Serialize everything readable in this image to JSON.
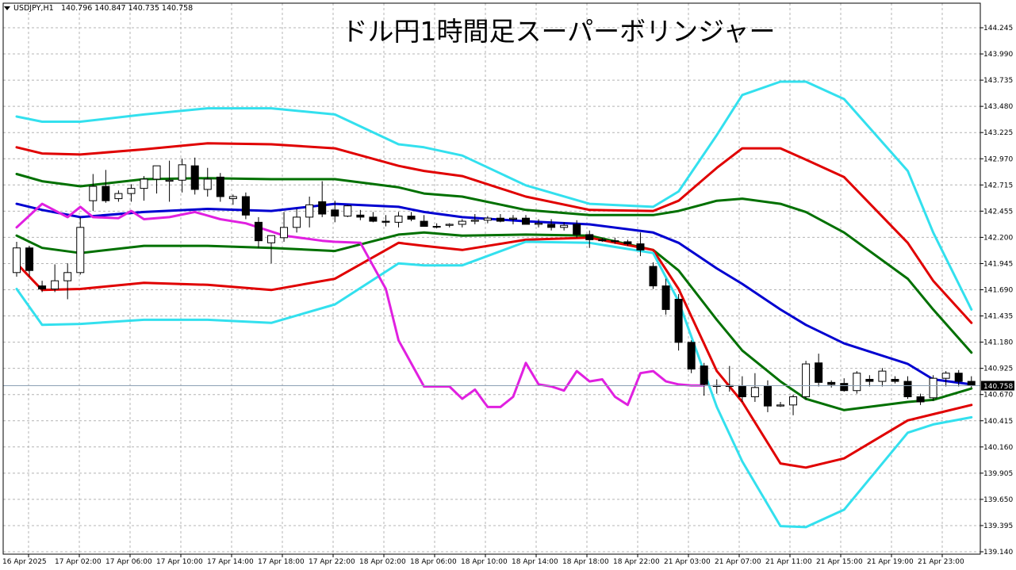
{
  "header": {
    "symbol": "USDJPY,H1",
    "ohlc": "140.796 140.847 140.735 140.758"
  },
  "title": "ドル円1時間足スーパーボリンジャー",
  "current_price_label": "140.758",
  "colors": {
    "background": "#ffffff",
    "grid": "#b4b4b4",
    "axis": "#000000",
    "bull_candle": "#ffffff",
    "bear_candle": "#000000",
    "sma": "#0000d0",
    "band1": "#007000",
    "band2": "#e00000",
    "band3": "#33e0ee",
    "lagging_span": "#e020e0",
    "price_line": "#8ca0b4",
    "price_label_bg": "#000000",
    "price_label_text": "#ffffff"
  },
  "chart_data": {
    "type": "candlestick",
    "title": "ドル円1時間足スーパーボリンジャー",
    "symbol": "USDJPY",
    "timeframe": "H1",
    "ylim": [
      139.14,
      144.46
    ],
    "yticks": [
      "144.245",
      "143.990",
      "143.735",
      "143.480",
      "143.225",
      "142.970",
      "142.715",
      "142.455",
      "142.200",
      "141.945",
      "141.690",
      "141.435",
      "141.180",
      "140.925",
      "140.670",
      "140.415",
      "140.160",
      "139.905",
      "139.650",
      "139.395",
      "139.140"
    ],
    "xticks": [
      "16 Apr 2025",
      "17 Apr 02:00",
      "17 Apr 06:00",
      "17 Apr 10:00",
      "17 Apr 14:00",
      "17 Apr 18:00",
      "17 Apr 22:00",
      "18 Apr 02:00",
      "18 Apr 06:00",
      "18 Apr 10:00",
      "18 Apr 14:00",
      "18 Apr 18:00",
      "18 Apr 22:00",
      "21 Apr 03:00",
      "21 Apr 07:00",
      "21 Apr 11:00",
      "21 Apr 15:00",
      "21 Apr 19:00",
      "21 Apr 23:00"
    ],
    "last_price": 140.758,
    "candles": [
      {
        "o": 141.86,
        "h": 142.16,
        "l": 141.82,
        "c": 142.1
      },
      {
        "o": 142.1,
        "h": 142.12,
        "l": 141.82,
        "c": 141.88
      },
      {
        "o": 141.73,
        "h": 141.78,
        "l": 141.67,
        "c": 141.7
      },
      {
        "o": 141.7,
        "h": 141.94,
        "l": 141.67,
        "c": 141.78
      },
      {
        "o": 141.78,
        "h": 141.95,
        "l": 141.6,
        "c": 141.86
      },
      {
        "o": 141.86,
        "h": 142.4,
        "l": 141.84,
        "c": 142.3
      },
      {
        "o": 142.56,
        "h": 142.82,
        "l": 142.46,
        "c": 142.7
      },
      {
        "o": 142.7,
        "h": 142.86,
        "l": 142.54,
        "c": 142.56
      },
      {
        "o": 142.58,
        "h": 142.66,
        "l": 142.55,
        "c": 142.63
      },
      {
        "o": 142.63,
        "h": 142.72,
        "l": 142.55,
        "c": 142.68
      },
      {
        "o": 142.68,
        "h": 142.8,
        "l": 142.56,
        "c": 142.77
      },
      {
        "o": 142.77,
        "h": 142.9,
        "l": 142.63,
        "c": 142.9
      },
      {
        "o": 142.75,
        "h": 142.95,
        "l": 142.55,
        "c": 142.76
      },
      {
        "o": 142.76,
        "h": 142.97,
        "l": 142.64,
        "c": 142.91
      },
      {
        "o": 142.9,
        "h": 142.98,
        "l": 142.62,
        "c": 142.67
      },
      {
        "o": 142.67,
        "h": 142.88,
        "l": 142.6,
        "c": 142.77
      },
      {
        "o": 142.79,
        "h": 142.83,
        "l": 142.55,
        "c": 142.6
      },
      {
        "o": 142.58,
        "h": 142.62,
        "l": 142.52,
        "c": 142.6
      },
      {
        "o": 142.6,
        "h": 142.64,
        "l": 142.38,
        "c": 142.42
      },
      {
        "o": 142.35,
        "h": 142.4,
        "l": 142.1,
        "c": 142.17
      },
      {
        "o": 142.15,
        "h": 142.2,
        "l": 141.95,
        "c": 142.22
      },
      {
        "o": 142.2,
        "h": 142.45,
        "l": 142.16,
        "c": 142.3
      },
      {
        "o": 142.3,
        "h": 142.48,
        "l": 142.25,
        "c": 142.4
      },
      {
        "o": 142.4,
        "h": 142.6,
        "l": 142.3,
        "c": 142.52
      },
      {
        "o": 142.55,
        "h": 142.75,
        "l": 142.4,
        "c": 142.43
      },
      {
        "o": 142.47,
        "h": 142.56,
        "l": 142.35,
        "c": 142.41
      },
      {
        "o": 142.41,
        "h": 142.52,
        "l": 142.4,
        "c": 142.51
      },
      {
        "o": 142.42,
        "h": 142.47,
        "l": 142.37,
        "c": 142.4
      },
      {
        "o": 142.4,
        "h": 142.45,
        "l": 142.35,
        "c": 142.36
      },
      {
        "o": 142.36,
        "h": 142.42,
        "l": 142.31,
        "c": 142.35
      },
      {
        "o": 142.35,
        "h": 142.45,
        "l": 142.3,
        "c": 142.41
      },
      {
        "o": 142.41,
        "h": 142.45,
        "l": 142.36,
        "c": 142.38
      },
      {
        "o": 142.36,
        "h": 142.42,
        "l": 142.31,
        "c": 142.31
      },
      {
        "o": 142.31,
        "h": 142.34,
        "l": 142.29,
        "c": 142.31
      },
      {
        "o": 142.32,
        "h": 142.34,
        "l": 142.3,
        "c": 142.33
      },
      {
        "o": 142.33,
        "h": 142.38,
        "l": 142.3,
        "c": 142.36
      },
      {
        "o": 142.36,
        "h": 142.43,
        "l": 142.33,
        "c": 142.37
      },
      {
        "o": 142.37,
        "h": 142.41,
        "l": 142.34,
        "c": 142.39
      },
      {
        "o": 142.39,
        "h": 142.43,
        "l": 142.35,
        "c": 142.36
      },
      {
        "o": 142.38,
        "h": 142.42,
        "l": 142.33,
        "c": 142.39
      },
      {
        "o": 142.39,
        "h": 142.42,
        "l": 142.33,
        "c": 142.33
      },
      {
        "o": 142.33,
        "h": 142.38,
        "l": 142.3,
        "c": 142.34
      },
      {
        "o": 142.33,
        "h": 142.38,
        "l": 142.27,
        "c": 142.3
      },
      {
        "o": 142.3,
        "h": 142.35,
        "l": 142.27,
        "c": 142.32
      },
      {
        "o": 142.33,
        "h": 142.37,
        "l": 142.2,
        "c": 142.23
      },
      {
        "o": 142.23,
        "h": 142.27,
        "l": 142.1,
        "c": 142.18
      },
      {
        "o": 142.18,
        "h": 142.2,
        "l": 142.16,
        "c": 142.17
      },
      {
        "o": 142.17,
        "h": 142.2,
        "l": 142.14,
        "c": 142.17
      },
      {
        "o": 142.16,
        "h": 142.18,
        "l": 142.12,
        "c": 142.14
      },
      {
        "o": 142.14,
        "h": 142.25,
        "l": 142.02,
        "c": 142.08
      },
      {
        "o": 141.92,
        "h": 141.96,
        "l": 141.7,
        "c": 141.73
      },
      {
        "o": 141.73,
        "h": 141.8,
        "l": 141.45,
        "c": 141.5
      },
      {
        "o": 141.6,
        "h": 141.65,
        "l": 141.1,
        "c": 141.18
      },
      {
        "o": 141.18,
        "h": 141.2,
        "l": 140.88,
        "c": 140.92
      },
      {
        "o": 140.95,
        "h": 140.98,
        "l": 140.66,
        "c": 140.77
      },
      {
        "o": 140.75,
        "h": 140.82,
        "l": 140.68,
        "c": 140.76
      },
      {
        "o": 140.76,
        "h": 140.95,
        "l": 140.7,
        "c": 140.75
      },
      {
        "o": 140.75,
        "h": 140.85,
        "l": 140.6,
        "c": 140.65
      },
      {
        "o": 140.65,
        "h": 140.88,
        "l": 140.6,
        "c": 140.74
      },
      {
        "o": 140.75,
        "h": 140.81,
        "l": 140.5,
        "c": 140.56
      },
      {
        "o": 140.56,
        "h": 140.6,
        "l": 140.55,
        "c": 140.57
      },
      {
        "o": 140.57,
        "h": 140.67,
        "l": 140.47,
        "c": 140.65
      },
      {
        "o": 140.65,
        "h": 141.0,
        "l": 140.62,
        "c": 140.97
      },
      {
        "o": 140.98,
        "h": 141.07,
        "l": 140.75,
        "c": 140.79
      },
      {
        "o": 140.79,
        "h": 140.81,
        "l": 140.74,
        "c": 140.77
      },
      {
        "o": 140.78,
        "h": 140.83,
        "l": 140.7,
        "c": 140.71
      },
      {
        "o": 140.71,
        "h": 140.9,
        "l": 140.68,
        "c": 140.88
      },
      {
        "o": 140.82,
        "h": 140.86,
        "l": 140.75,
        "c": 140.8
      },
      {
        "o": 140.8,
        "h": 140.93,
        "l": 140.75,
        "c": 140.9
      },
      {
        "o": 140.82,
        "h": 140.85,
        "l": 140.78,
        "c": 140.8
      },
      {
        "o": 140.8,
        "h": 140.85,
        "l": 140.63,
        "c": 140.65
      },
      {
        "o": 140.65,
        "h": 140.68,
        "l": 140.57,
        "c": 140.6
      },
      {
        "o": 140.64,
        "h": 140.86,
        "l": 140.61,
        "c": 140.83
      },
      {
        "o": 140.83,
        "h": 140.9,
        "l": 140.75,
        "c": 140.88
      },
      {
        "o": 140.88,
        "h": 140.91,
        "l": 140.75,
        "c": 140.8
      },
      {
        "o": 140.8,
        "h": 140.85,
        "l": 140.74,
        "c": 140.76
      }
    ],
    "series": [
      {
        "role": "+3σ",
        "color": "#33e0ee",
        "x": [
          0,
          2,
          5,
          10,
          15,
          20,
          25,
          30,
          32,
          35,
          40,
          45,
          50,
          52,
          55,
          57,
          60,
          62,
          65,
          70,
          72,
          75
        ],
        "values": [
          143.38,
          143.33,
          143.33,
          143.4,
          143.46,
          143.46,
          143.4,
          143.11,
          143.08,
          143.0,
          142.71,
          142.53,
          142.5,
          142.65,
          143.2,
          143.59,
          143.72,
          143.72,
          143.55,
          142.85,
          142.25,
          141.5
        ]
      },
      {
        "role": "+2σ",
        "color": "#e00000",
        "x": [
          0,
          2,
          5,
          10,
          15,
          20,
          25,
          30,
          32,
          35,
          40,
          45,
          50,
          52,
          55,
          57,
          60,
          62,
          65,
          70,
          72,
          75
        ],
        "values": [
          143.08,
          143.02,
          143.01,
          143.06,
          143.12,
          143.11,
          143.07,
          142.9,
          142.85,
          142.8,
          142.6,
          142.47,
          142.46,
          142.56,
          142.88,
          143.07,
          143.07,
          142.96,
          142.79,
          142.15,
          141.78,
          141.37
        ]
      },
      {
        "role": "+1σ",
        "color": "#007000",
        "x": [
          0,
          2,
          5,
          10,
          15,
          20,
          25,
          30,
          32,
          35,
          40,
          45,
          50,
          52,
          55,
          57,
          60,
          62,
          65,
          70,
          72,
          75
        ],
        "values": [
          142.82,
          142.75,
          142.7,
          142.77,
          142.78,
          142.77,
          142.77,
          142.69,
          142.63,
          142.6,
          142.47,
          142.42,
          142.42,
          142.46,
          142.56,
          142.58,
          142.53,
          142.45,
          142.25,
          141.8,
          141.5,
          141.08
        ]
      },
      {
        "role": "SMA",
        "color": "#0000d0",
        "x": [
          0,
          2,
          5,
          10,
          15,
          20,
          25,
          30,
          32,
          35,
          40,
          45,
          50,
          52,
          55,
          57,
          60,
          62,
          65,
          70,
          72,
          75
        ],
        "values": [
          142.53,
          142.47,
          142.4,
          142.45,
          142.48,
          142.46,
          142.53,
          142.5,
          142.45,
          142.4,
          142.36,
          142.33,
          142.25,
          142.15,
          141.9,
          141.75,
          141.5,
          141.35,
          141.17,
          140.97,
          140.82,
          140.77
        ]
      },
      {
        "role": "-1σ",
        "color": "#007000",
        "x": [
          0,
          2,
          5,
          10,
          15,
          20,
          25,
          30,
          32,
          35,
          40,
          45,
          50,
          52,
          55,
          57,
          60,
          62,
          65,
          70,
          72,
          75
        ],
        "values": [
          142.22,
          142.1,
          142.05,
          142.12,
          142.12,
          142.1,
          142.07,
          142.23,
          142.25,
          142.22,
          142.23,
          142.22,
          142.08,
          141.88,
          141.4,
          141.1,
          140.8,
          140.63,
          140.52,
          140.6,
          140.62,
          140.73
        ]
      },
      {
        "role": "-2σ",
        "color": "#e00000",
        "x": [
          0,
          2,
          5,
          10,
          15,
          20,
          25,
          30,
          32,
          35,
          40,
          45,
          50,
          52,
          55,
          57,
          60,
          62,
          65,
          70,
          72,
          75
        ],
        "values": [
          141.95,
          141.69,
          141.7,
          141.76,
          141.74,
          141.69,
          141.8,
          142.15,
          142.12,
          142.08,
          142.18,
          142.2,
          142.08,
          141.7,
          140.9,
          140.6,
          140.0,
          139.96,
          140.05,
          140.42,
          140.48,
          140.57
        ]
      },
      {
        "role": "-3σ",
        "color": "#33e0ee",
        "x": [
          0,
          2,
          5,
          10,
          15,
          20,
          25,
          30,
          32,
          35,
          40,
          45,
          50,
          52,
          55,
          57,
          60,
          62,
          65,
          70,
          72,
          75
        ],
        "values": [
          141.7,
          141.35,
          141.36,
          141.4,
          141.4,
          141.37,
          141.55,
          141.95,
          141.93,
          141.93,
          142.16,
          142.15,
          142.05,
          141.58,
          140.55,
          140.02,
          139.39,
          139.38,
          139.55,
          140.3,
          140.38,
          140.45
        ]
      },
      {
        "role": "lagging span",
        "color": "#e020e0",
        "x": [
          0,
          2,
          4,
          5,
          6,
          8,
          9,
          10,
          12,
          14,
          16,
          18,
          21,
          24,
          25,
          27,
          29,
          30,
          32,
          34,
          35,
          36,
          37,
          38,
          39,
          40,
          41,
          42,
          43,
          44,
          45,
          46,
          47,
          48,
          49,
          50,
          51,
          52,
          53,
          54
        ],
        "values": [
          142.3,
          142.53,
          142.4,
          142.5,
          142.4,
          142.39,
          142.46,
          142.38,
          142.4,
          142.45,
          142.38,
          142.34,
          142.22,
          142.17,
          142.16,
          142.15,
          141.7,
          141.2,
          140.75,
          140.75,
          140.63,
          140.72,
          140.55,
          140.55,
          140.65,
          140.98,
          140.77,
          140.75,
          140.71,
          140.9,
          140.8,
          140.82,
          140.65,
          140.57,
          140.88,
          140.9,
          140.8,
          140.77,
          140.76,
          140.76
        ]
      }
    ]
  }
}
